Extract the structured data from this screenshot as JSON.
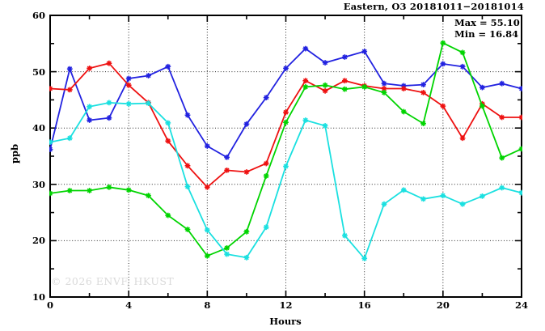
{
  "chart_data": {
    "type": "line",
    "title": "Eastern, O3 20181011−20181014",
    "xlabel": "Hours",
    "ylabel": "ppb",
    "watermark": "© 2026 ENVF, HKUST",
    "annotations": {
      "max": "Max = 55.10",
      "min": "Min = 16.84"
    },
    "xlim": [
      0,
      24
    ],
    "ylim": [
      10,
      60
    ],
    "xticks_major": [
      0,
      4,
      8,
      12,
      16,
      20,
      24
    ],
    "xticks_minor": [
      2,
      6,
      10,
      14,
      18,
      22
    ],
    "yticks_major": [
      10,
      20,
      30,
      40,
      50,
      60
    ],
    "yticks_minor": [
      15,
      25,
      35,
      45,
      55
    ],
    "grid": "dotted-at-major-ticks",
    "legend": "none",
    "marker": "asterisk",
    "x": [
      0,
      1,
      2,
      3,
      4,
      5,
      6,
      7,
      8,
      9,
      10,
      11,
      12,
      13,
      14,
      15,
      16,
      17,
      18,
      19,
      20,
      21,
      22,
      23,
      24
    ],
    "series": [
      {
        "name": "blue-day",
        "color": "#2222e0",
        "values": [
          36.2,
          50.5,
          41.4,
          41.8,
          48.8,
          49.3,
          50.9,
          42.3,
          36.8,
          34.8,
          40.7,
          45.4,
          50.6,
          54.1,
          51.6,
          52.6,
          53.6,
          47.9,
          47.5,
          47.7,
          51.4,
          50.9,
          47.2,
          47.9,
          47.0
        ]
      },
      {
        "name": "red-day",
        "color": "#ee1111",
        "values": [
          47.0,
          46.8,
          50.6,
          51.5,
          47.6,
          44.5,
          37.7,
          33.3,
          29.5,
          32.5,
          32.2,
          33.7,
          42.8,
          48.4,
          46.6,
          48.4,
          47.5,
          47.0,
          47.0,
          46.3,
          43.9,
          38.2,
          44.3,
          41.9,
          41.9
        ]
      },
      {
        "name": "green-day",
        "color": "#00d400",
        "values": [
          28.4,
          28.9,
          28.9,
          29.5,
          29.0,
          28.0,
          24.5,
          22.0,
          17.3,
          18.7,
          21.6,
          31.5,
          41.0,
          47.3,
          47.6,
          46.9,
          47.3,
          46.3,
          42.9,
          40.8,
          55.1,
          53.4,
          43.9,
          34.7,
          36.3
        ]
      },
      {
        "name": "cyan-day",
        "color": "#1ae0e0",
        "values": [
          37.5,
          38.2,
          43.8,
          44.5,
          44.3,
          44.4,
          40.9,
          29.6,
          21.9,
          17.6,
          17.0,
          22.4,
          33.2,
          41.4,
          40.4,
          20.9,
          16.84,
          26.5,
          29.0,
          27.4,
          28.0,
          26.5,
          27.9,
          29.4,
          28.5
        ]
      }
    ]
  }
}
